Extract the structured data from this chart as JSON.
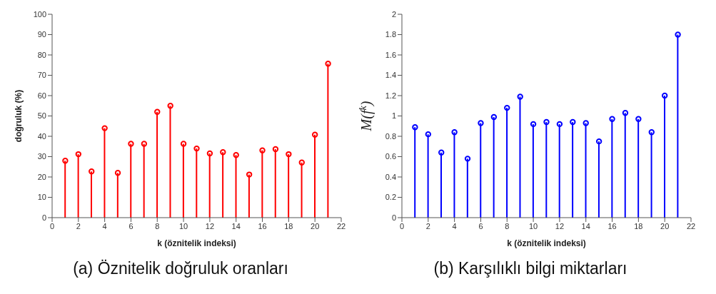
{
  "chart_data": [
    {
      "type": "lollipop",
      "xlabel": "k (öznitelik indeksi)",
      "ylabel": "doğruluk (%)",
      "annotations": [
        "(a) Öznitelik doğruluk oranları"
      ],
      "x": [
        1,
        2,
        3,
        4,
        5,
        6,
        7,
        8,
        9,
        10,
        11,
        12,
        13,
        14,
        15,
        16,
        17,
        18,
        19,
        20,
        21
      ],
      "series": [
        {
          "color": "#ff0000",
          "values": [
            28,
            31.2,
            22.7,
            44,
            22,
            36.3,
            36.3,
            52,
            55,
            36.3,
            34,
            31.6,
            32.2,
            30.8,
            21.2,
            33.1,
            33.7,
            31.2,
            27.1,
            40.8,
            75.7
          ]
        }
      ],
      "xlim": [
        0,
        22
      ],
      "xticks": [
        0,
        2,
        4,
        6,
        8,
        10,
        12,
        14,
        16,
        18,
        20,
        22
      ],
      "ylim": [
        0,
        100
      ],
      "yticks": [
        0,
        10,
        20,
        30,
        40,
        50,
        60,
        70,
        80,
        90,
        100
      ],
      "marker": "circle",
      "grid": false,
      "legend": false
    },
    {
      "type": "lollipop",
      "xlabel": "k (öznitelik indeksi)",
      "ylabel": "M(f$^{k}$)",
      "annotations": [
        "(b) Karşılıklı bilgi miktarları"
      ],
      "x": [
        1,
        2,
        3,
        4,
        5,
        6,
        7,
        8,
        9,
        10,
        11,
        12,
        13,
        14,
        15,
        16,
        17,
        18,
        19,
        20,
        21
      ],
      "series": [
        {
          "color": "#0000ff",
          "values": [
            0.89,
            0.82,
            0.64,
            0.84,
            0.58,
            0.93,
            0.99,
            1.08,
            1.19,
            0.92,
            0.94,
            0.92,
            0.94,
            0.93,
            0.75,
            0.97,
            1.03,
            0.97,
            0.84,
            1.2,
            1.8
          ]
        }
      ],
      "xlim": [
        0,
        22
      ],
      "xticks": [
        0,
        2,
        4,
        6,
        8,
        10,
        12,
        14,
        16,
        18,
        20,
        22
      ],
      "ylim": [
        0,
        2
      ],
      "yticks": [
        0,
        0.2,
        0.4,
        0.6,
        0.8,
        1,
        1.2,
        1.4,
        1.6,
        1.8,
        2
      ],
      "marker": "circle",
      "grid": false,
      "legend": false
    }
  ]
}
